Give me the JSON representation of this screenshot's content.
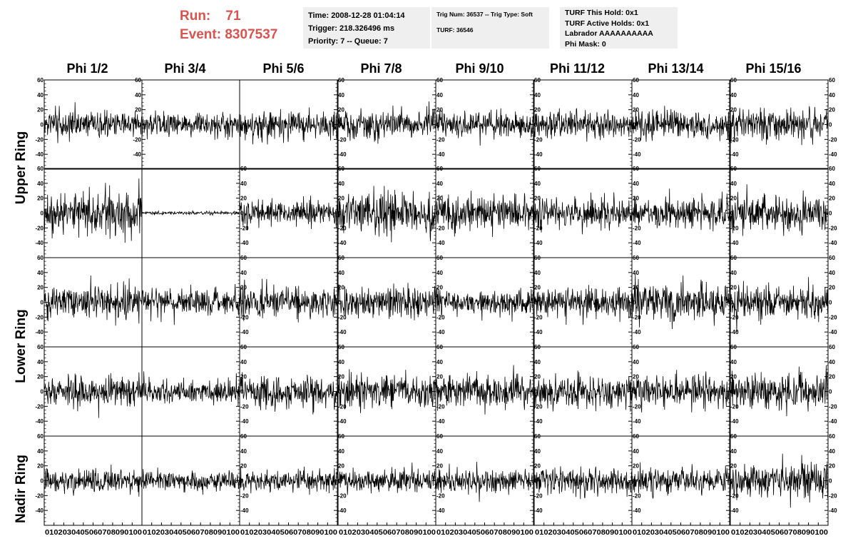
{
  "header": {
    "run_label": "Run:",
    "run_value": "71",
    "event_label": "Event:",
    "event_value": "8307537"
  },
  "info_box_1": {
    "time": "Time: 2008-12-28 01:04:14",
    "trigger": "Trigger: 218.326496 ms",
    "priority": "Priority: 7 -- Queue: 7"
  },
  "info_box_2": {
    "trig": "Trig Num: 36537 -- Trig Type: Soft",
    "turf": "TURF: 36546"
  },
  "info_box_3": {
    "hold": "TURF This Hold: 0x1",
    "active": "TURF Active Holds: 0x1",
    "labrador": "Labrador AAAAAAAAAA",
    "phimask": "Phi Mask: 0"
  },
  "columns": [
    "Phi 1/2",
    "Phi 3/4",
    "Phi 5/6",
    "Phi 7/8",
    "Phi 9/10",
    "Phi 11/12",
    "Phi 13/14",
    "Phi 15/16"
  ],
  "rings": [
    "Upper Ring",
    "Lower Ring",
    "Nadir Ring"
  ],
  "chart_data": {
    "type": "line",
    "grid": "8 columns x 5 rows of waveform panels",
    "x_range": [
      0,
      100
    ],
    "y_range": [
      -60,
      60
    ],
    "y_ticks": [
      -40,
      -20,
      0,
      20,
      40,
      60
    ],
    "x_tick_labels": "0 10 20 30 40 50 60 70 80 90 100",
    "panel_amplitude": [
      [
        16,
        14,
        17,
        16,
        15,
        16,
        17,
        19
      ],
      [
        23,
        2,
        15,
        22,
        20,
        18,
        19,
        22
      ],
      [
        19,
        16,
        19,
        18,
        15,
        17,
        20,
        19
      ],
      [
        18,
        14,
        19,
        18,
        18,
        17,
        18,
        20
      ],
      [
        14,
        12,
        12,
        14,
        14,
        15,
        15,
        18
      ]
    ],
    "y_label_side": [
      [
        "left",
        "left",
        "right",
        "right",
        "right",
        "right",
        "right",
        "right"
      ],
      [
        "left",
        "right",
        "right",
        "right",
        "right",
        "right",
        "right",
        "right"
      ],
      [
        "left",
        "right",
        "right",
        "right",
        "right",
        "right",
        "right",
        "right"
      ],
      [
        "left",
        "right",
        "right",
        "right",
        "right",
        "right",
        "right",
        "right"
      ],
      [
        "left",
        "right",
        "right",
        "right",
        "right",
        "right",
        "right",
        "right"
      ]
    ]
  }
}
